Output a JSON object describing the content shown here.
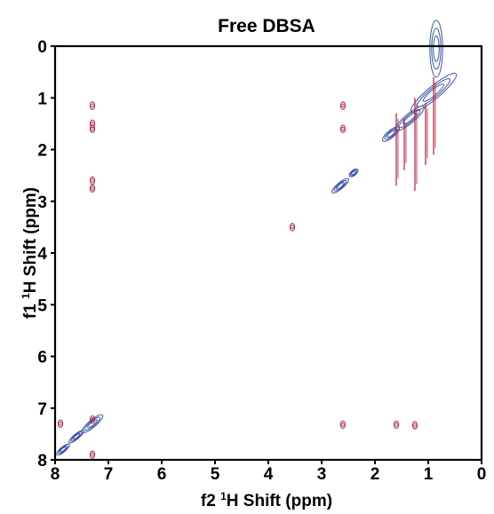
{
  "chart_data": {
    "type": "scatter",
    "subtype": "2D NMR contour plot (1H-1H NOESY/ROESY overlay)",
    "title": "Free DBSA",
    "xlabel_prefix": "f2 ",
    "xlabel_sup": "1",
    "xlabel_suffix": "H Shift (ppm)",
    "ylabel_prefix": "f1 ",
    "ylabel_sup": "1",
    "ylabel_suffix": "H Shift (ppm)",
    "xlim": [
      8,
      0
    ],
    "ylim": [
      0,
      8
    ],
    "x_reversed": true,
    "y_reversed": true,
    "x_ticks": [
      "8",
      "7",
      "6",
      "5",
      "4",
      "3",
      "2",
      "1",
      "0"
    ],
    "y_ticks": [
      "0",
      "1",
      "2",
      "3",
      "4",
      "5",
      "6",
      "7",
      "8"
    ],
    "grid": false,
    "colors": {
      "series_a": "#3a55a4",
      "series_b": "#b01e3c",
      "frame": "#000000"
    },
    "series": [
      {
        "color_key": "series_a",
        "diagonal_peaks": [
          {
            "x": 0.85,
            "y": 0.05,
            "rx": 0.12,
            "ry": 0.55
          },
          {
            "x": 0.9,
            "y": 0.9,
            "rx": 0.55,
            "ry": 0.12,
            "angle": -40
          },
          {
            "x": 1.35,
            "y": 1.4,
            "rx": 0.35,
            "ry": 0.09,
            "angle": -40
          },
          {
            "x": 1.7,
            "y": 1.7,
            "rx": 0.2,
            "ry": 0.07,
            "angle": -40
          },
          {
            "x": 2.65,
            "y": 2.7,
            "rx": 0.2,
            "ry": 0.06,
            "angle": -40
          },
          {
            "x": 2.4,
            "y": 2.45,
            "rx": 0.1,
            "ry": 0.05,
            "angle": -40
          },
          {
            "x": 7.3,
            "y": 7.3,
            "rx": 0.25,
            "ry": 0.07,
            "angle": -40
          },
          {
            "x": 7.6,
            "y": 7.55,
            "rx": 0.18,
            "ry": 0.05,
            "angle": -40
          },
          {
            "x": 7.85,
            "y": 7.8,
            "rx": 0.15,
            "ry": 0.05,
            "angle": -40
          }
        ]
      },
      {
        "color_key": "series_b",
        "cross_peaks": [
          {
            "x": 7.3,
            "y": 1.15
          },
          {
            "x": 7.3,
            "y": 1.5
          },
          {
            "x": 7.3,
            "y": 1.6
          },
          {
            "x": 7.3,
            "y": 2.6
          },
          {
            "x": 7.3,
            "y": 2.75
          },
          {
            "x": 7.3,
            "y": 7.22
          },
          {
            "x": 7.3,
            "y": 7.9
          },
          {
            "x": 7.9,
            "y": 7.3
          },
          {
            "x": 2.6,
            "y": 1.15
          },
          {
            "x": 2.6,
            "y": 1.6
          },
          {
            "x": 2.6,
            "y": 7.32
          },
          {
            "x": 1.6,
            "y": 7.32
          },
          {
            "x": 1.25,
            "y": 7.33
          },
          {
            "x": 3.55,
            "y": 3.5
          }
        ],
        "streaks": [
          {
            "x": 1.6,
            "y0": 1.3,
            "y1": 2.7
          },
          {
            "x": 1.25,
            "y0": 1.0,
            "y1": 2.8
          },
          {
            "x": 0.9,
            "y0": 0.6,
            "y1": 2.1
          },
          {
            "x": 1.05,
            "y0": 1.1,
            "y1": 2.3
          },
          {
            "x": 1.45,
            "y0": 1.4,
            "y1": 2.4
          }
        ]
      }
    ]
  }
}
